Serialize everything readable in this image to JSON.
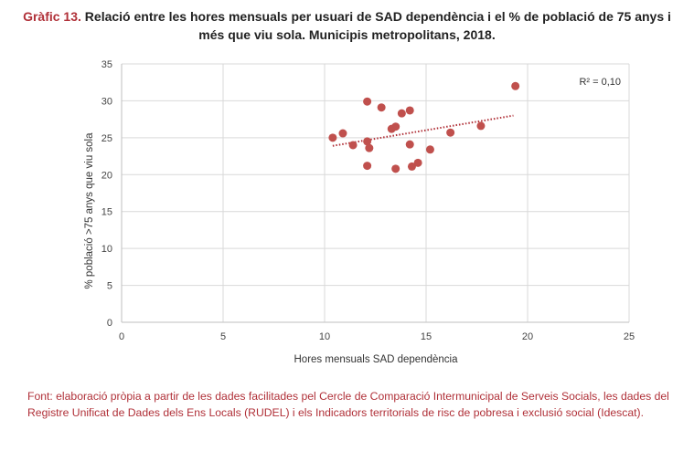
{
  "header": {
    "label": "Gràfic 13.",
    "title": "Relació entre les hores mensuals per usuari de SAD dependència i el % de població de 75 anys i més que viu sola. Municipis metropolitans, 2018."
  },
  "footer": {
    "source": "Font: elaboració pròpia a partir de les dades facilitades pel Cercle de Comparació Intermunicipal de Serveis Socials, les dades del Registre Unificat de Dades dels Ens Locals (RUDEL) i els Indicadors territorials de risc de pobresa i exclusió social (Idescat)."
  },
  "chart_data": {
    "type": "scatter",
    "xlabel": "Hores mensuals SAD dependència",
    "ylabel": "% població >75 anys que viu sola",
    "xlim": [
      0,
      25
    ],
    "ylim": [
      0,
      35
    ],
    "xticks": [
      0,
      5,
      10,
      15,
      20,
      25
    ],
    "yticks": [
      0,
      5,
      10,
      15,
      20,
      25,
      30,
      35
    ],
    "grid": "both",
    "annotation": "R² = 0,10",
    "point_color": "#c0504d",
    "points": [
      {
        "x": 10.4,
        "y": 25.0
      },
      {
        "x": 10.9,
        "y": 25.6
      },
      {
        "x": 11.4,
        "y": 24.0
      },
      {
        "x": 12.1,
        "y": 29.9
      },
      {
        "x": 12.1,
        "y": 24.5
      },
      {
        "x": 12.1,
        "y": 21.2
      },
      {
        "x": 12.2,
        "y": 23.6
      },
      {
        "x": 12.8,
        "y": 29.1
      },
      {
        "x": 13.3,
        "y": 26.2
      },
      {
        "x": 13.5,
        "y": 26.5
      },
      {
        "x": 13.5,
        "y": 20.8
      },
      {
        "x": 13.8,
        "y": 28.3
      },
      {
        "x": 14.2,
        "y": 28.7
      },
      {
        "x": 14.2,
        "y": 24.1
      },
      {
        "x": 14.3,
        "y": 21.1
      },
      {
        "x": 14.6,
        "y": 21.6
      },
      {
        "x": 15.2,
        "y": 23.4
      },
      {
        "x": 16.2,
        "y": 25.7
      },
      {
        "x": 17.7,
        "y": 26.6
      },
      {
        "x": 19.4,
        "y": 32.0
      }
    ],
    "trendline": {
      "style": "dotted",
      "color": "#b03038",
      "from": {
        "x": 10.4,
        "y": 23.9
      },
      "to": {
        "x": 19.3,
        "y": 28.0
      }
    }
  }
}
